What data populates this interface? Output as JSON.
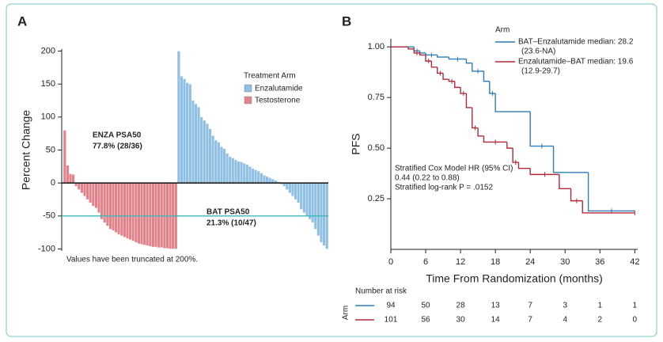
{
  "chart_data": [
    {
      "type": "bar",
      "panel": "A",
      "ylabel": "Percent Change",
      "ylim": [
        -103,
        203
      ],
      "yticks": [
        -100,
        -50,
        0,
        50,
        100,
        150,
        200
      ],
      "reference_line": {
        "value": -50,
        "color": "#3bb8b8"
      },
      "legend_title": "Treatment Arm",
      "series": [
        {
          "name": "Enzalutamide",
          "color": "#8fc0e3",
          "values": [
            200,
            162,
            158,
            152,
            150,
            125,
            120,
            115,
            100,
            95,
            90,
            82,
            72,
            65,
            62,
            55,
            52,
            45,
            40,
            38,
            35,
            33,
            32,
            30,
            28,
            25,
            22,
            20,
            18,
            15,
            12,
            10,
            8,
            6,
            4,
            2,
            -2,
            -5,
            -10,
            -15,
            -20,
            -25,
            -30,
            -40,
            -45,
            -50,
            -55,
            -60,
            -70,
            -80,
            -90,
            -95,
            -100
          ]
        },
        {
          "name": "Testosterone",
          "color": "#e2828a",
          "values": [
            80,
            27,
            14,
            13,
            -5,
            -10,
            -15,
            -20,
            -25,
            -30,
            -35,
            -38,
            -45,
            -55,
            -60,
            -65,
            -70,
            -72,
            -75,
            -78,
            -80,
            -82,
            -84,
            -86,
            -88,
            -90,
            -92,
            -93,
            -94,
            -95,
            -96,
            -97,
            -97,
            -98,
            -98,
            -99,
            -99,
            -100,
            -100,
            -100
          ]
        }
      ],
      "annotations": [
        "ENZA PSA50",
        "77.8% (28/36)",
        "BAT PSA50",
        "21.3% (10/47)",
        "Values have been truncated at 200%."
      ]
    },
    {
      "type": "step",
      "panel": "B",
      "xlabel": "Time From Randomization (months)",
      "ylabel": "PFS",
      "xlim": [
        0,
        42.5
      ],
      "xticks": [
        0,
        6,
        12,
        18,
        24,
        30,
        36,
        42
      ],
      "ylim": [
        0,
        1.04
      ],
      "yticks": [
        {
          "value": 0.25,
          "label": "0.25"
        },
        {
          "value": 0.5,
          "label": "0.50"
        },
        {
          "value": 0.75,
          "label": "0.75"
        },
        {
          "value": 1,
          "label": "1.00"
        }
      ],
      "legend_title": "Arm",
      "series": [
        {
          "name": "BAT–Enzalutamide median: 28.2",
          "ci": "(23.6-NA)",
          "color": "#2a7fb8",
          "x": [
            0,
            3,
            4,
            5,
            6,
            8,
            10,
            13,
            14,
            16,
            17,
            18,
            24,
            28,
            34,
            42
          ],
          "values": [
            1,
            1,
            0.98,
            0.97,
            0.96,
            0.95,
            0.94,
            0.92,
            0.88,
            0.83,
            0.77,
            0.68,
            0.51,
            0.38,
            0.19,
            0.19
          ]
        },
        {
          "name": "Enzalutamide–BAT median: 19.6",
          "ci": "(12.9-29.7)",
          "color": "#b5283a",
          "x": [
            0,
            3,
            4,
            5,
            6,
            7,
            8,
            9,
            10,
            11,
            12,
            13,
            14,
            15,
            16,
            20,
            21,
            22,
            24,
            29,
            31,
            33,
            42
          ],
          "values": [
            1,
            0.99,
            0.97,
            0.96,
            0.93,
            0.9,
            0.87,
            0.84,
            0.83,
            0.8,
            0.77,
            0.7,
            0.6,
            0.56,
            0.53,
            0.5,
            0.43,
            0.4,
            0.37,
            0.3,
            0.24,
            0.18,
            0.18
          ]
        }
      ],
      "annotations": [
        "Stratified Cox Model HR (95% CI)",
        "0.44 (0.22 to 0.88)",
        "Stratified log-rank P = .0152"
      ],
      "risk_table": {
        "title": "Number at risk",
        "label": "Arm",
        "rows": [
          [
            94,
            50,
            28,
            13,
            7,
            3,
            1,
            1
          ],
          [
            101,
            56,
            30,
            14,
            7,
            4,
            2,
            0
          ]
        ]
      }
    }
  ]
}
